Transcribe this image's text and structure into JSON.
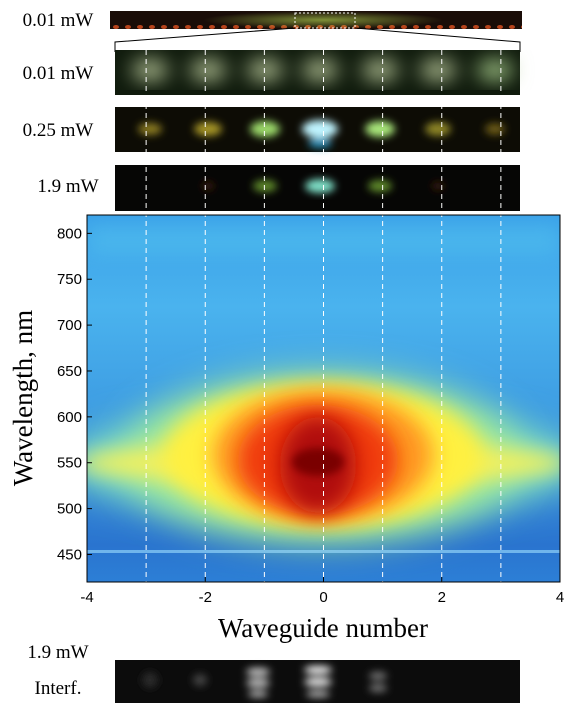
{
  "chart_data": {
    "type": "heatmap",
    "xlabel": "Waveguide number",
    "ylabel": "Wavelength, nm",
    "xlim": [
      -4,
      4
    ],
    "ylim": [
      420,
      820
    ],
    "xticks": [
      -4,
      -2,
      0,
      2,
      4
    ],
    "yticks": [
      450,
      500,
      550,
      600,
      650,
      700,
      750,
      800
    ],
    "vlines": [
      -3,
      -2,
      -1,
      0,
      1,
      2,
      3
    ],
    "line_color": "#ffffff"
  },
  "panels": [
    {
      "label": "0.01 mW"
    },
    {
      "label": "0.01 mW"
    },
    {
      "label": "0.25 mW"
    },
    {
      "label": "1.9 mW"
    }
  ],
  "interference": {
    "power": "1.9 mW",
    "label": "Interf."
  }
}
